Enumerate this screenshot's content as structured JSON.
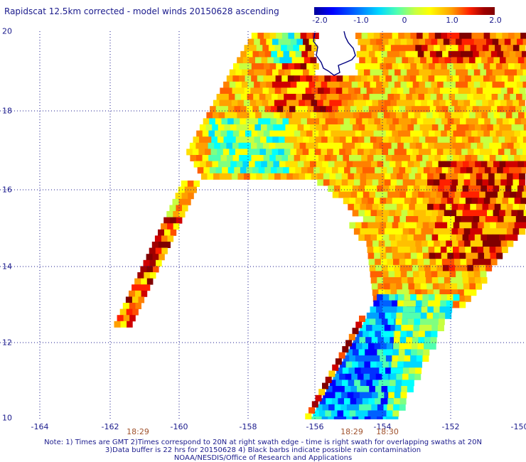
{
  "title": "Rapidscat 12.5km corrected - model winds 20150628 ascending",
  "colorbar": {
    "labels": [
      "-2.0",
      "-1.0",
      "0",
      "1.0",
      "2.0"
    ],
    "values": [
      -2.0,
      -1.0,
      0,
      1.0,
      2.0
    ],
    "colors": [
      "#00009a",
      "#0000ff",
      "#00a0ff",
      "#00ffff",
      "#80ff80",
      "#ffff00",
      "#ff8000",
      "#ff0000",
      "#800000"
    ]
  },
  "axes": {
    "x_ticks": [
      "-164",
      "-162",
      "-160",
      "-158",
      "-156",
      "-154",
      "-152",
      "-150"
    ],
    "x_values": [
      -164,
      -162,
      -160,
      -158,
      -156,
      -154,
      -152,
      -150
    ],
    "y_ticks": [
      "20",
      "18",
      "16",
      "14",
      "12",
      "10"
    ],
    "y_values": [
      20,
      18,
      16,
      14,
      12,
      10
    ],
    "x_range": [
      -164.8,
      -150
    ],
    "y_range": [
      10,
      20
    ],
    "grid": "dotted"
  },
  "time_labels": [
    {
      "text": "18:29",
      "lon": -161.1
    },
    {
      "text": "18:29",
      "lon": -154.9
    },
    {
      "text": "18:30",
      "lon": -153.9
    }
  ],
  "notes": [
    "Note: 1) Times are GMT 2)Times correspond to 20N at right swath edge - time is right swath for overlapping swaths at 20N",
    "3)Data buffer is 22 hrs for 20150628 4) Black barbs indicate possible rain contamination",
    "NOAA/NESDIS/Office of Research and Applications"
  ],
  "map_features": [
    "coastline-big-island-hawaii"
  ]
}
